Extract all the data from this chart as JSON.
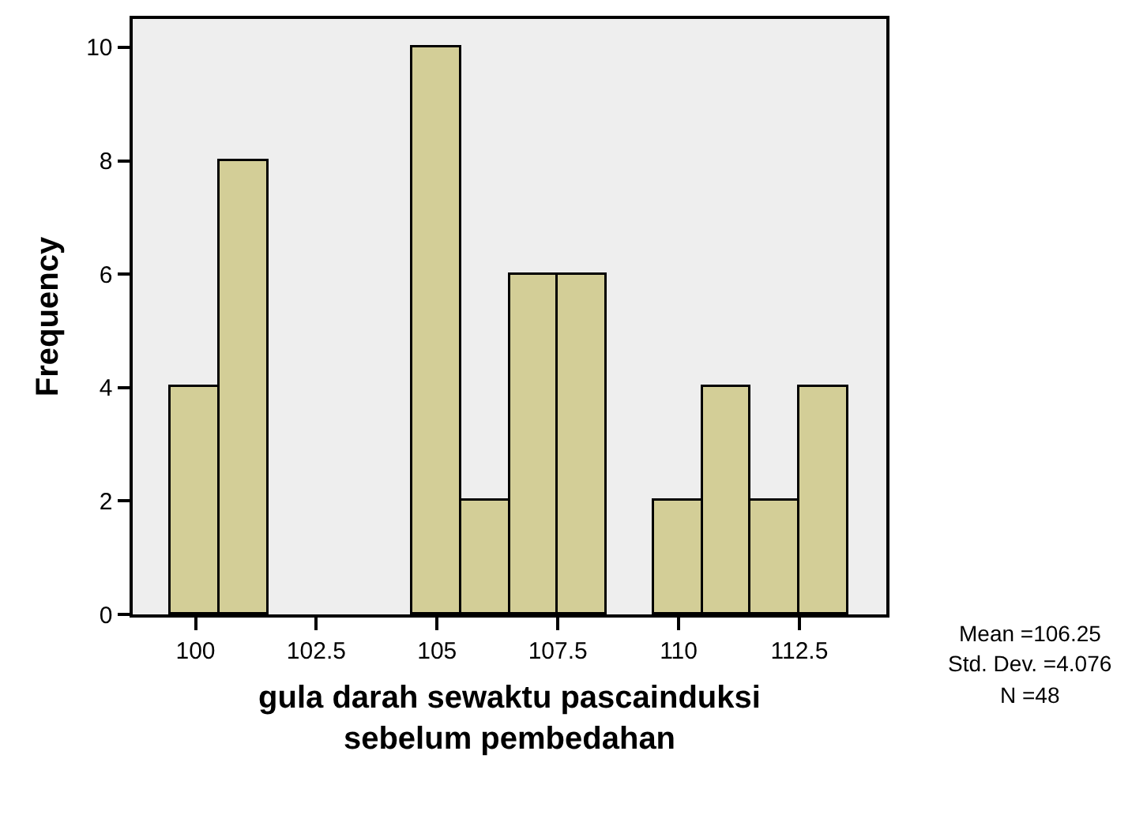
{
  "chart_data": {
    "type": "histogram",
    "xlabel": "gula darah sewaktu pascainduksi\nsebelum pembedahan",
    "ylabel": "Frequency",
    "bins": [
      99.5,
      100.5,
      101.5,
      102.5,
      103.5,
      104.5,
      105.5,
      106.5,
      107.5,
      108.5,
      109.5,
      110.5,
      111.5,
      112.5,
      113.5
    ],
    "values": [
      4,
      8,
      0,
      0,
      0,
      10,
      2,
      6,
      6,
      0,
      2,
      4,
      2,
      4
    ],
    "color": "#d3ce97",
    "xlim": [
      98.7,
      114.3
    ],
    "xticks": [
      100,
      102.5,
      105,
      107.5,
      110,
      112.5
    ],
    "ylim": [
      0,
      10.5
    ],
    "yticks": [
      0,
      2,
      4,
      6,
      8,
      10
    ],
    "grid": false,
    "annotations": [
      "Mean =106.25",
      "Std. Dev. =4.076",
      "N =48"
    ]
  }
}
